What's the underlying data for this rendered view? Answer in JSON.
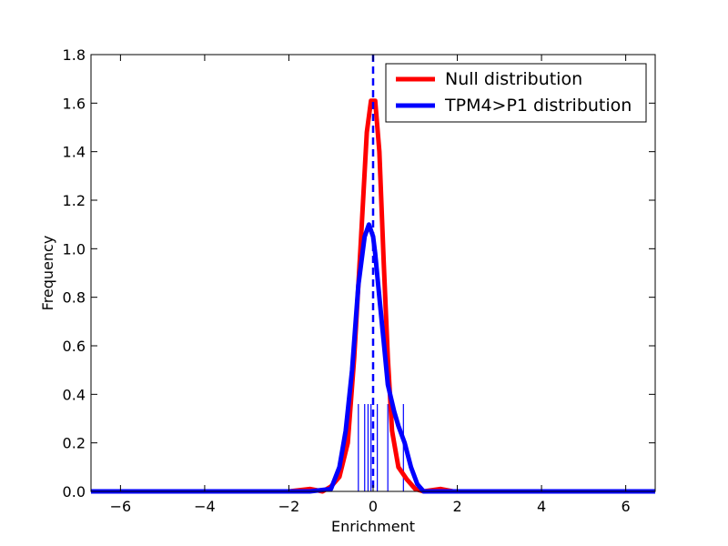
{
  "chart_data": {
    "type": "line",
    "xlabel": "Enrichment",
    "ylabel": "Frequency",
    "xlim": [
      -6.7,
      6.7
    ],
    "ylim": [
      0,
      1.8
    ],
    "xticks": [
      "−6",
      "−4",
      "−2",
      "0",
      "2",
      "4",
      "6"
    ],
    "xtick_values": [
      -6,
      -4,
      -2,
      0,
      2,
      4,
      6
    ],
    "yticks": [
      "0.0",
      "0.2",
      "0.4",
      "0.6",
      "0.8",
      "1.0",
      "1.2",
      "1.4",
      "1.6",
      "1.8"
    ],
    "ytick_values": [
      0,
      0.2,
      0.4,
      0.6,
      0.8,
      1.0,
      1.2,
      1.4,
      1.6,
      1.8
    ],
    "grid": false,
    "legend_position": "top-right",
    "series": [
      {
        "name": "Null distribution",
        "color": "#ff0000",
        "x": [
          -6.7,
          -3.0,
          -2.0,
          -1.5,
          -1.2,
          -1.0,
          -0.8,
          -0.6,
          -0.45,
          -0.3,
          -0.15,
          -0.05,
          0.0,
          0.05,
          0.15,
          0.25,
          0.35,
          0.45,
          0.6,
          0.8,
          1.0,
          1.2,
          1.6,
          1.9,
          2.4,
          3.0,
          6.7
        ],
        "y": [
          0.0,
          0.0,
          0.0,
          0.01,
          0.0,
          0.02,
          0.06,
          0.2,
          0.55,
          1.0,
          1.48,
          1.61,
          1.61,
          1.61,
          1.4,
          0.95,
          0.55,
          0.25,
          0.1,
          0.05,
          0.01,
          0.0,
          0.01,
          0.0,
          0.0,
          0.0,
          0.0
        ]
      },
      {
        "name": "TPM4>P1 distribution",
        "color": "#0000ff",
        "x": [
          -6.7,
          -1.5,
          -1.0,
          -0.8,
          -0.65,
          -0.5,
          -0.35,
          -0.2,
          -0.1,
          0.0,
          0.05,
          0.15,
          0.25,
          0.35,
          0.5,
          0.6,
          0.75,
          0.9,
          1.05,
          1.2,
          1.5,
          6.7
        ],
        "y": [
          0.0,
          0.0,
          0.01,
          0.1,
          0.25,
          0.5,
          0.85,
          1.05,
          1.1,
          1.05,
          0.98,
          0.8,
          0.62,
          0.44,
          0.33,
          0.27,
          0.2,
          0.1,
          0.03,
          0.0,
          0.0,
          0.0
        ]
      }
    ],
    "rug": {
      "color": "#0000ff",
      "height": 0.36,
      "x": [
        -0.35,
        -0.2,
        -0.12,
        -0.05,
        0.1,
        0.35,
        0.72
      ]
    },
    "vline": {
      "x": 0.0,
      "color": "#0000ff",
      "style": "dashed"
    }
  }
}
